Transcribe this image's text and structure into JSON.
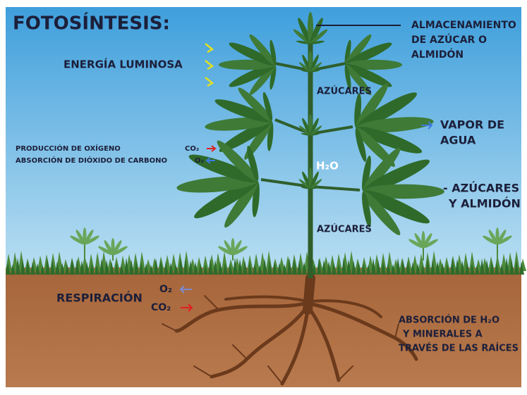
{
  "title": "FOTOSÍNTESIS:",
  "labels": {
    "light_energy": "ENERGÍA LUMINOSA",
    "storage": [
      "ALMACENAMIENTO",
      "DE AZÚCAR O",
      "ALMIDÓN"
    ],
    "sugars_top": "AZÚCARES",
    "water_vapor": [
      "VAPOR DE",
      "AGUA"
    ],
    "oxygen_production": "PRODUCCIÓN DE OXÍGENO",
    "oxygen_production_gas": "CO₂",
    "co2_absorption": "ABSORCIÓN DE DIÓXIDO DE CARBONO",
    "co2_absorption_gas": "O₂",
    "water": "H₂O",
    "sugars_starch": [
      "- AZÚCARES",
      "Y ALMIDÓN"
    ],
    "sugars_bottom": "AZÚCARES",
    "respiration": "RESPIRACIÓN",
    "respiration_in": "O₂",
    "respiration_out": "CO₂",
    "root_absorption": [
      "ABSORCIÓN DE H₂O",
      "Y MINERALES A",
      "TRAVÉS DE LAS RAÍCES"
    ]
  }
}
